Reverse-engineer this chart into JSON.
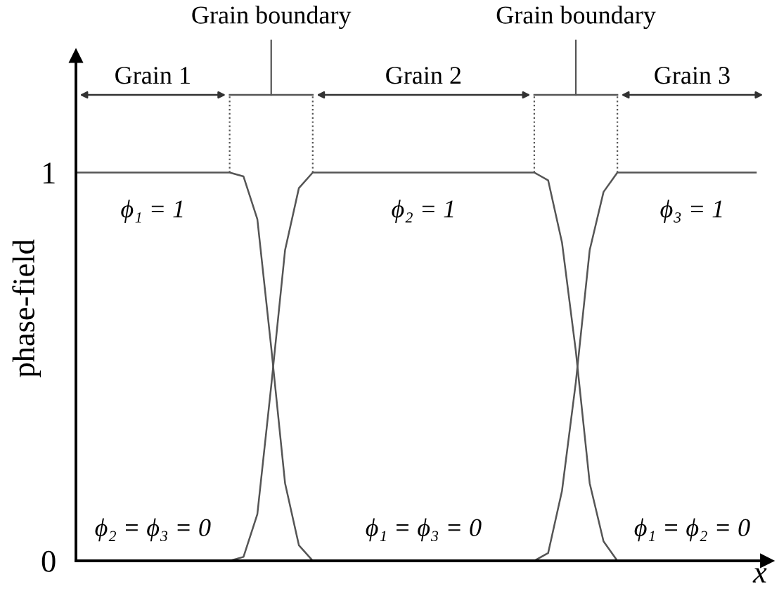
{
  "chart_data": {
    "type": "line",
    "xlabel": "x",
    "ylabel": "phase-field",
    "categories": [
      null,
      null,
      null,
      null,
      null,
      null,
      null,
      null,
      null,
      null,
      null,
      null,
      null,
      null,
      null,
      null,
      null,
      null,
      null,
      null,
      null,
      null,
      null,
      null,
      null,
      null,
      null,
      null,
      null,
      null,
      null,
      null,
      null,
      null,
      null,
      null,
      null,
      null,
      null,
      null,
      null,
      null,
      null,
      null,
      null,
      null,
      null,
      null,
      null,
      null
    ],
    "series": [
      {
        "color": "#555555",
        "values": [
          1,
          1,
          1,
          1,
          1,
          1,
          1,
          1,
          1,
          1,
          1,
          1,
          0.99,
          0.88,
          0.55,
          0.2,
          0.04,
          0,
          0,
          0,
          0,
          0,
          0,
          0,
          0,
          0,
          0,
          0,
          0,
          0,
          0,
          0,
          0,
          0,
          0,
          0,
          0,
          0,
          0,
          0,
          0,
          0,
          0,
          0,
          0,
          0,
          0,
          0,
          0,
          0
        ]
      },
      {
        "color": "#555555",
        "values": [
          0,
          0,
          0,
          0,
          0,
          0,
          0,
          0,
          0,
          0,
          0,
          0,
          0.01,
          0.12,
          0.45,
          0.8,
          0.96,
          1,
          1,
          1,
          1,
          1,
          1,
          1,
          1,
          1,
          1,
          1,
          1,
          1,
          1,
          1,
          1,
          1,
          0.98,
          0.82,
          0.54,
          0.2,
          0.05,
          0,
          0,
          0,
          0,
          0,
          0,
          0,
          0,
          0,
          0,
          0
        ]
      },
      {
        "color": "#555555",
        "values": [
          0,
          0,
          0,
          0,
          0,
          0,
          0,
          0,
          0,
          0,
          0,
          0,
          0,
          0,
          0,
          0,
          0,
          0,
          0,
          0,
          0,
          0,
          0,
          0,
          0,
          0,
          0,
          0,
          0,
          0,
          0,
          0,
          0,
          0,
          0.02,
          0.18,
          0.46,
          0.8,
          0.95,
          1,
          1,
          1,
          1,
          1,
          1,
          1,
          1,
          1,
          1,
          1
        ]
      }
    ],
    "ylim": [
      0,
      1.3
    ],
    "yticks": [
      0,
      1
    ],
    "tick_labels": "y",
    "grid": false,
    "annotations": [
      "Grain boundary",
      "Grain boundary",
      "Grain 1",
      "Grain 2",
      "Grain 3",
      "ϕ₁ = 1",
      "ϕ₂ = 1",
      "ϕ₃ = 1",
      "ϕ₂ = ϕ₃ = 0",
      "ϕ₁ = ϕ₃ = 0",
      "ϕ₁ = ϕ₂ = 0"
    ]
  }
}
